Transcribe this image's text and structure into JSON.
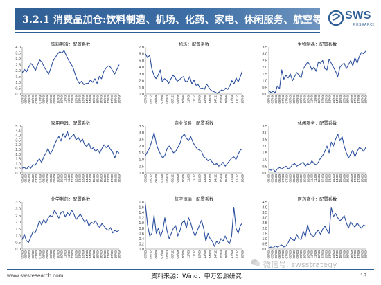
{
  "header": {
    "title": "3.2.1 消费品加仓:饮料制造、机场、化药、家电、休闲服务、航空等",
    "logo_text": "SWS",
    "logo_sub": "RESEARCH"
  },
  "colors": {
    "accent": "#2f5f95",
    "series": "#2b4f9e"
  },
  "footer": {
    "url": "www.swsresearch.com",
    "source": "资料来源：Wind、申万宏源研究",
    "page": "18",
    "watermark": "微信号: swsstrategy"
  },
  "chart_data": [
    {
      "type": "line",
      "title": "饮料制造：配置系数",
      "ylim": [
        0,
        4
      ],
      "yticks": [
        "0.0",
        "0.5",
        "1.0",
        "1.5",
        "2.0",
        "2.5",
        "3.0",
        "3.5",
        "4.0"
      ],
      "xticks": [
        "05/03",
        "05/09",
        "06/03",
        "06/09",
        "07/03",
        "07/09",
        "08/03",
        "08/09",
        "09/03",
        "09/09",
        "10/03",
        "10/09",
        "11/03",
        "11/09",
        "12/03",
        "12/09",
        "13/03",
        "13/09",
        "14/03",
        "14/09",
        "15/03",
        "15/09",
        "16/03",
        "16/09",
        "17/03",
        "17/09",
        "18/03",
        "18/09"
      ],
      "values": [
        1.8,
        2.1,
        1.9,
        2.3,
        2.6,
        2.4,
        2.0,
        2.5,
        2.9,
        2.7,
        2.3,
        2.0,
        1.7,
        2.2,
        2.8,
        3.1,
        3.4,
        3.6,
        3.5,
        3.7,
        3.3,
        2.9,
        2.6,
        2.3,
        1.7,
        1.2,
        0.9,
        1.1,
        0.8,
        0.9,
        0.9,
        1.2,
        1.0,
        1.3,
        0.9,
        1.5,
        1.3,
        1.9,
        2.2,
        2.4,
        2.3,
        2.0,
        1.7,
        2.1,
        2.5
      ]
    },
    {
      "type": "line",
      "title": "机场：配置系数",
      "ylim": [
        0,
        7
      ],
      "yticks": [
        "0.0",
        "1.0",
        "2.0",
        "3.0",
        "4.0",
        "5.0",
        "6.0",
        "7.0"
      ],
      "xticks": [
        "05/03",
        "05/12",
        "06/09",
        "07/06",
        "08/03",
        "08/12",
        "09/09",
        "10/06",
        "11/03",
        "11/12",
        "12/09",
        "13/06",
        "14/03",
        "14/12",
        "15/09",
        "16/06",
        "17/03",
        "17/12",
        "18/09"
      ],
      "values": [
        6.0,
        5.4,
        5.8,
        3.8,
        2.8,
        2.3,
        2.8,
        3.6,
        1.8,
        2.3,
        2.1,
        1.6,
        2.2,
        2.8,
        2.5,
        1.9,
        2.1,
        2.4,
        2.6,
        1.8,
        1.9,
        2.6,
        1.5,
        2.1,
        1.3,
        1.4,
        0.8,
        0.9,
        0.7,
        1.5,
        1.0,
        0.6,
        0.4,
        0.3,
        0.1,
        0.3,
        0.6,
        0.5,
        0.9,
        0.7,
        1.2,
        2.0,
        1.5,
        2.4,
        1.8,
        2.6,
        3.5
      ]
    },
    {
      "type": "line",
      "title": "生物制品：配置系数",
      "ylim": [
        0,
        3.5
      ],
      "yticks": [
        "0.0",
        "0.5",
        "1.0",
        "1.5",
        "2.0",
        "2.5",
        "3.0",
        "3.5"
      ],
      "xticks": [
        "05/03",
        "05/09",
        "06/03",
        "06/09",
        "07/03",
        "07/09",
        "08/03",
        "08/09",
        "09/03",
        "09/09",
        "10/03",
        "10/09",
        "11/03",
        "11/09",
        "12/03",
        "12/09",
        "13/03",
        "13/09",
        "14/03",
        "14/09",
        "15/03",
        "15/09",
        "16/03",
        "16/09",
        "17/03",
        "17/09",
        "18/03",
        "18/09"
      ],
      "values": [
        0.3,
        0.1,
        0.2,
        0.1,
        0.6,
        0.4,
        1.8,
        1.1,
        1.4,
        1.2,
        1.5,
        1.0,
        1.3,
        1.6,
        1.4,
        1.2,
        1.9,
        2.1,
        2.4,
        2.2,
        1.8,
        2.0,
        1.7,
        2.4,
        2.3,
        2.5,
        1.9,
        1.8,
        2.6,
        2.3,
        2.0,
        1.7,
        1.3,
        2.0,
        2.2,
        2.3,
        1.9,
        2.2,
        2.5,
        2.1,
        2.7,
        2.3,
        2.8,
        3.1,
        3.0,
        3.2
      ]
    },
    {
      "type": "line",
      "title": "家用电器：配置系数",
      "ylim": [
        0,
        5
      ],
      "yticks": [
        "0.0",
        "0.5",
        "1.0",
        "1.5",
        "2.0",
        "2.5",
        "3.0",
        "3.5",
        "4.0",
        "4.5",
        "5.0"
      ],
      "xticks": [
        "05/03",
        "05/09",
        "06/03",
        "06/09",
        "07/03",
        "07/09",
        "08/03",
        "08/09",
        "09/03",
        "09/09",
        "10/03",
        "10/09",
        "11/03",
        "11/09",
        "12/03",
        "12/09",
        "13/03",
        "13/09",
        "14/03",
        "14/09",
        "15/03",
        "15/09",
        "16/03",
        "16/09",
        "17/03",
        "17/09",
        "18/03",
        "18/09"
      ],
      "values": [
        0.5,
        0.6,
        0.4,
        0.7,
        0.5,
        0.9,
        0.8,
        1.2,
        1.5,
        1.1,
        1.7,
        2.1,
        2.6,
        2.0,
        2.4,
        3.0,
        3.5,
        3.9,
        3.4,
        4.2,
        3.8,
        4.4,
        3.6,
        3.9,
        4.1,
        3.5,
        3.8,
        3.3,
        3.6,
        3.0,
        2.8,
        3.2,
        2.5,
        2.7,
        2.3,
        2.5,
        2.1,
        2.6,
        3.0,
        2.7,
        2.9,
        2.5,
        2.2,
        1.6,
        2.3,
        2.1
      ]
    },
    {
      "type": "line",
      "title": "商业贸易：配置系数",
      "ylim": [
        0,
        3.5
      ],
      "yticks": [
        "0.0",
        "0.5",
        "1.0",
        "1.5",
        "2.0",
        "2.5",
        "3.0",
        "3.5"
      ],
      "xticks": [
        "05/03",
        "05/12",
        "06/09",
        "07/06",
        "08/03",
        "08/12",
        "09/09",
        "10/06",
        "11/03",
        "11/12",
        "12/09",
        "13/06",
        "14/03",
        "14/12",
        "15/09",
        "16/06",
        "17/03",
        "17/12",
        "18/09"
      ],
      "values": [
        1.3,
        1.6,
        1.9,
        2.4,
        3.0,
        2.2,
        1.7,
        1.4,
        1.1,
        1.3,
        1.8,
        2.0,
        1.8,
        1.5,
        1.6,
        1.9,
        2.2,
        2.7,
        2.9,
        2.6,
        2.4,
        2.7,
        2.3,
        2.0,
        1.8,
        1.7,
        1.6,
        1.2,
        1.1,
        0.9,
        1.0,
        0.8,
        0.6,
        0.7,
        0.5,
        0.6,
        0.8,
        0.5,
        0.7,
        0.9,
        1.1,
        1.2,
        1.0,
        1.4,
        1.7,
        1.8
      ]
    },
    {
      "type": "line",
      "title": "休闲服务：配置系数",
      "ylim": [
        0,
        3.5
      ],
      "yticks": [
        "0.0",
        "0.5",
        "1.0",
        "1.5",
        "2.0",
        "2.5",
        "3.0",
        "3.5"
      ],
      "xticks": [
        "05/03",
        "05/09",
        "06/03",
        "06/09",
        "07/03",
        "07/09",
        "08/03",
        "08/09",
        "09/03",
        "09/09",
        "10/03",
        "10/09",
        "11/03",
        "11/09",
        "12/03",
        "12/09",
        "13/03",
        "13/09",
        "14/03",
        "14/09",
        "15/03",
        "15/09",
        "16/03",
        "16/09",
        "17/03",
        "17/09",
        "18/03",
        "18/09"
      ],
      "values": [
        0.3,
        0.2,
        0.3,
        0.1,
        0.3,
        0.4,
        0.3,
        0.4,
        0.5,
        0.3,
        0.4,
        0.6,
        0.7,
        0.5,
        0.6,
        0.7,
        0.8,
        0.5,
        0.7,
        0.6,
        0.9,
        0.7,
        0.6,
        0.8,
        1.1,
        1.3,
        1.6,
        2.0,
        1.5,
        2.3,
        2.0,
        2.5,
        2.9,
        2.4,
        2.7,
        2.0,
        1.5,
        1.1,
        1.4,
        1.7,
        1.2,
        1.6,
        1.9,
        1.8,
        1.6,
        1.9
      ]
    },
    {
      "type": "line",
      "title": "化学制药：配置系数",
      "ylim": [
        0,
        3.5
      ],
      "yticks": [
        "0.0",
        "0.5",
        "1.0",
        "1.5",
        "2.0",
        "2.5",
        "3.0",
        "3.5"
      ],
      "xticks": [
        "05/03",
        "05/09",
        "06/03",
        "06/09",
        "07/03",
        "07/09",
        "08/03",
        "08/09",
        "09/03",
        "09/09",
        "10/03",
        "10/09",
        "11/03",
        "11/09",
        "12/03",
        "12/09",
        "13/03",
        "13/09",
        "14/03",
        "14/09",
        "15/03",
        "15/09",
        "16/03",
        "16/09",
        "17/03",
        "17/09",
        "18/03",
        "18/09"
      ],
      "values": [
        0.7,
        1.1,
        0.6,
        0.5,
        0.9,
        1.3,
        1.2,
        1.6,
        2.1,
        1.8,
        2.2,
        1.9,
        2.3,
        2.5,
        2.4,
        2.9,
        2.6,
        2.3,
        2.7,
        2.8,
        2.4,
        2.7,
        2.5,
        2.9,
        2.6,
        2.2,
        2.4,
        2.6,
        2.3,
        2.0,
        2.2,
        1.7,
        2.0,
        1.9,
        2.1,
        1.8,
        1.6,
        1.9,
        1.7,
        1.5,
        1.4,
        1.6,
        1.2,
        1.4,
        1.3,
        1.4
      ]
    },
    {
      "type": "line",
      "title": "航空运输：配置系数",
      "ylim": [
        0,
        1.8
      ],
      "yticks": [
        "0.0",
        "0.2",
        "0.4",
        "0.6",
        "0.8",
        "1.0",
        "1.2",
        "1.4",
        "1.6",
        "1.8"
      ],
      "xticks": [
        "05/03",
        "05/12",
        "06/09",
        "07/06",
        "08/03",
        "08/12",
        "09/09",
        "10/06",
        "11/03",
        "11/12",
        "12/09",
        "13/06",
        "14/03",
        "14/12",
        "15/09",
        "16/06",
        "17/03",
        "17/12",
        "18/09"
      ],
      "values": [
        1.7,
        0.9,
        0.5,
        0.6,
        1.3,
        0.6,
        0.8,
        0.5,
        0.7,
        1.2,
        0.7,
        0.4,
        0.6,
        0.8,
        0.9,
        0.5,
        0.7,
        1.0,
        1.1,
        0.8,
        1.2,
        1.0,
        0.7,
        0.5,
        0.7,
        0.9,
        1.1,
        0.8,
        0.3,
        0.6,
        0.4,
        0.3,
        0.1,
        0.3,
        0.2,
        0.4,
        0.3,
        0.5,
        0.3,
        0.2,
        0.5,
        1.6,
        0.8,
        0.6,
        0.9,
        1.0
      ]
    },
    {
      "type": "line",
      "title": "医药商业：配置系数",
      "ylim": [
        0,
        4.5
      ],
      "yticks": [
        "0.0",
        "0.5",
        "1.0",
        "1.5",
        "2.0",
        "2.5",
        "3.0",
        "3.5",
        "4.0",
        "4.5"
      ],
      "xticks": [
        "05/03",
        "05/09",
        "06/03",
        "06/09",
        "07/03",
        "07/09",
        "08/03",
        "08/09",
        "09/03",
        "09/09",
        "10/03",
        "10/09",
        "11/03",
        "11/09",
        "12/03",
        "12/09",
        "13/03",
        "13/09",
        "14/03",
        "14/09",
        "15/03",
        "15/09",
        "16/03",
        "16/09",
        "17/03",
        "17/09",
        "18/03",
        "18/09"
      ],
      "values": [
        0.1,
        0.2,
        0.1,
        0.3,
        0.2,
        0.3,
        0.4,
        0.2,
        0.3,
        0.6,
        1.1,
        0.9,
        0.8,
        1.4,
        1.0,
        0.9,
        1.7,
        1.2,
        2.3,
        1.6,
        1.3,
        1.2,
        1.6,
        1.8,
        1.4,
        1.9,
        2.2,
        1.8,
        1.5,
        4.0,
        3.1,
        3.4,
        3.0,
        2.7,
        2.9,
        3.2,
        2.5,
        2.0,
        2.6,
        2.3,
        2.1,
        2.5,
        2.2,
        2.0,
        2.3,
        2.2
      ]
    }
  ]
}
